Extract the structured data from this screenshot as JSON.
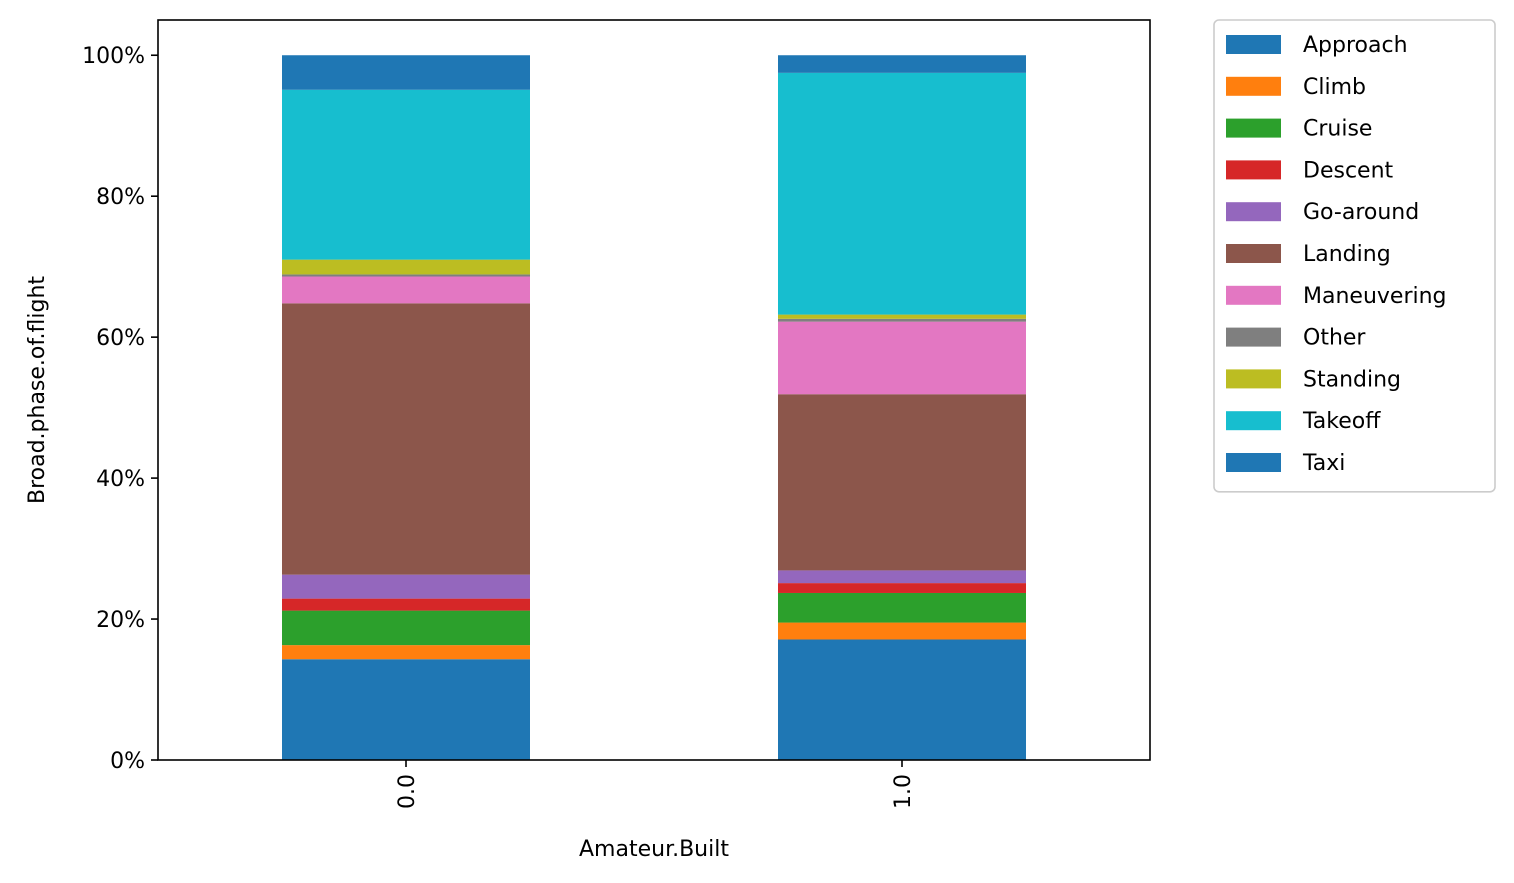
{
  "chart_data": {
    "type": "bar",
    "stacked": true,
    "categories": [
      "0.0",
      "1.0"
    ],
    "xlabel": "Amateur.Built",
    "ylabel": "Broad.phase.of.flight",
    "ylim": [
      0,
      1.05
    ],
    "yticks": [
      0,
      0.2,
      0.4,
      0.6,
      0.8,
      1.0
    ],
    "ytick_labels": [
      "0%",
      "20%",
      "40%",
      "60%",
      "80%",
      "100%"
    ],
    "legend_position": "outside-top-right",
    "grid": false,
    "series": [
      {
        "name": "Approach",
        "color": "#1f77b4",
        "values": [
          0.143,
          0.171
        ]
      },
      {
        "name": "Climb",
        "color": "#ff7f0e",
        "values": [
          0.02,
          0.024
        ]
      },
      {
        "name": "Cruise",
        "color": "#2ca02c",
        "values": [
          0.049,
          0.042
        ]
      },
      {
        "name": "Descent",
        "color": "#d62728",
        "values": [
          0.017,
          0.014
        ]
      },
      {
        "name": "Go-around",
        "color": "#9467bd",
        "values": [
          0.034,
          0.018
        ]
      },
      {
        "name": "Landing",
        "color": "#8c564b",
        "values": [
          0.385,
          0.25
        ]
      },
      {
        "name": "Maneuvering",
        "color": "#e377c2",
        "values": [
          0.038,
          0.103
        ]
      },
      {
        "name": "Other",
        "color": "#7f7f7f",
        "values": [
          0.003,
          0.004
        ]
      },
      {
        "name": "Standing",
        "color": "#bcbd22",
        "values": [
          0.021,
          0.006
        ]
      },
      {
        "name": "Takeoff",
        "color": "#17becf",
        "values": [
          0.241,
          0.343
        ]
      },
      {
        "name": "Taxi",
        "color": "#1f77b4",
        "values": [
          0.049,
          0.025
        ]
      }
    ]
  }
}
